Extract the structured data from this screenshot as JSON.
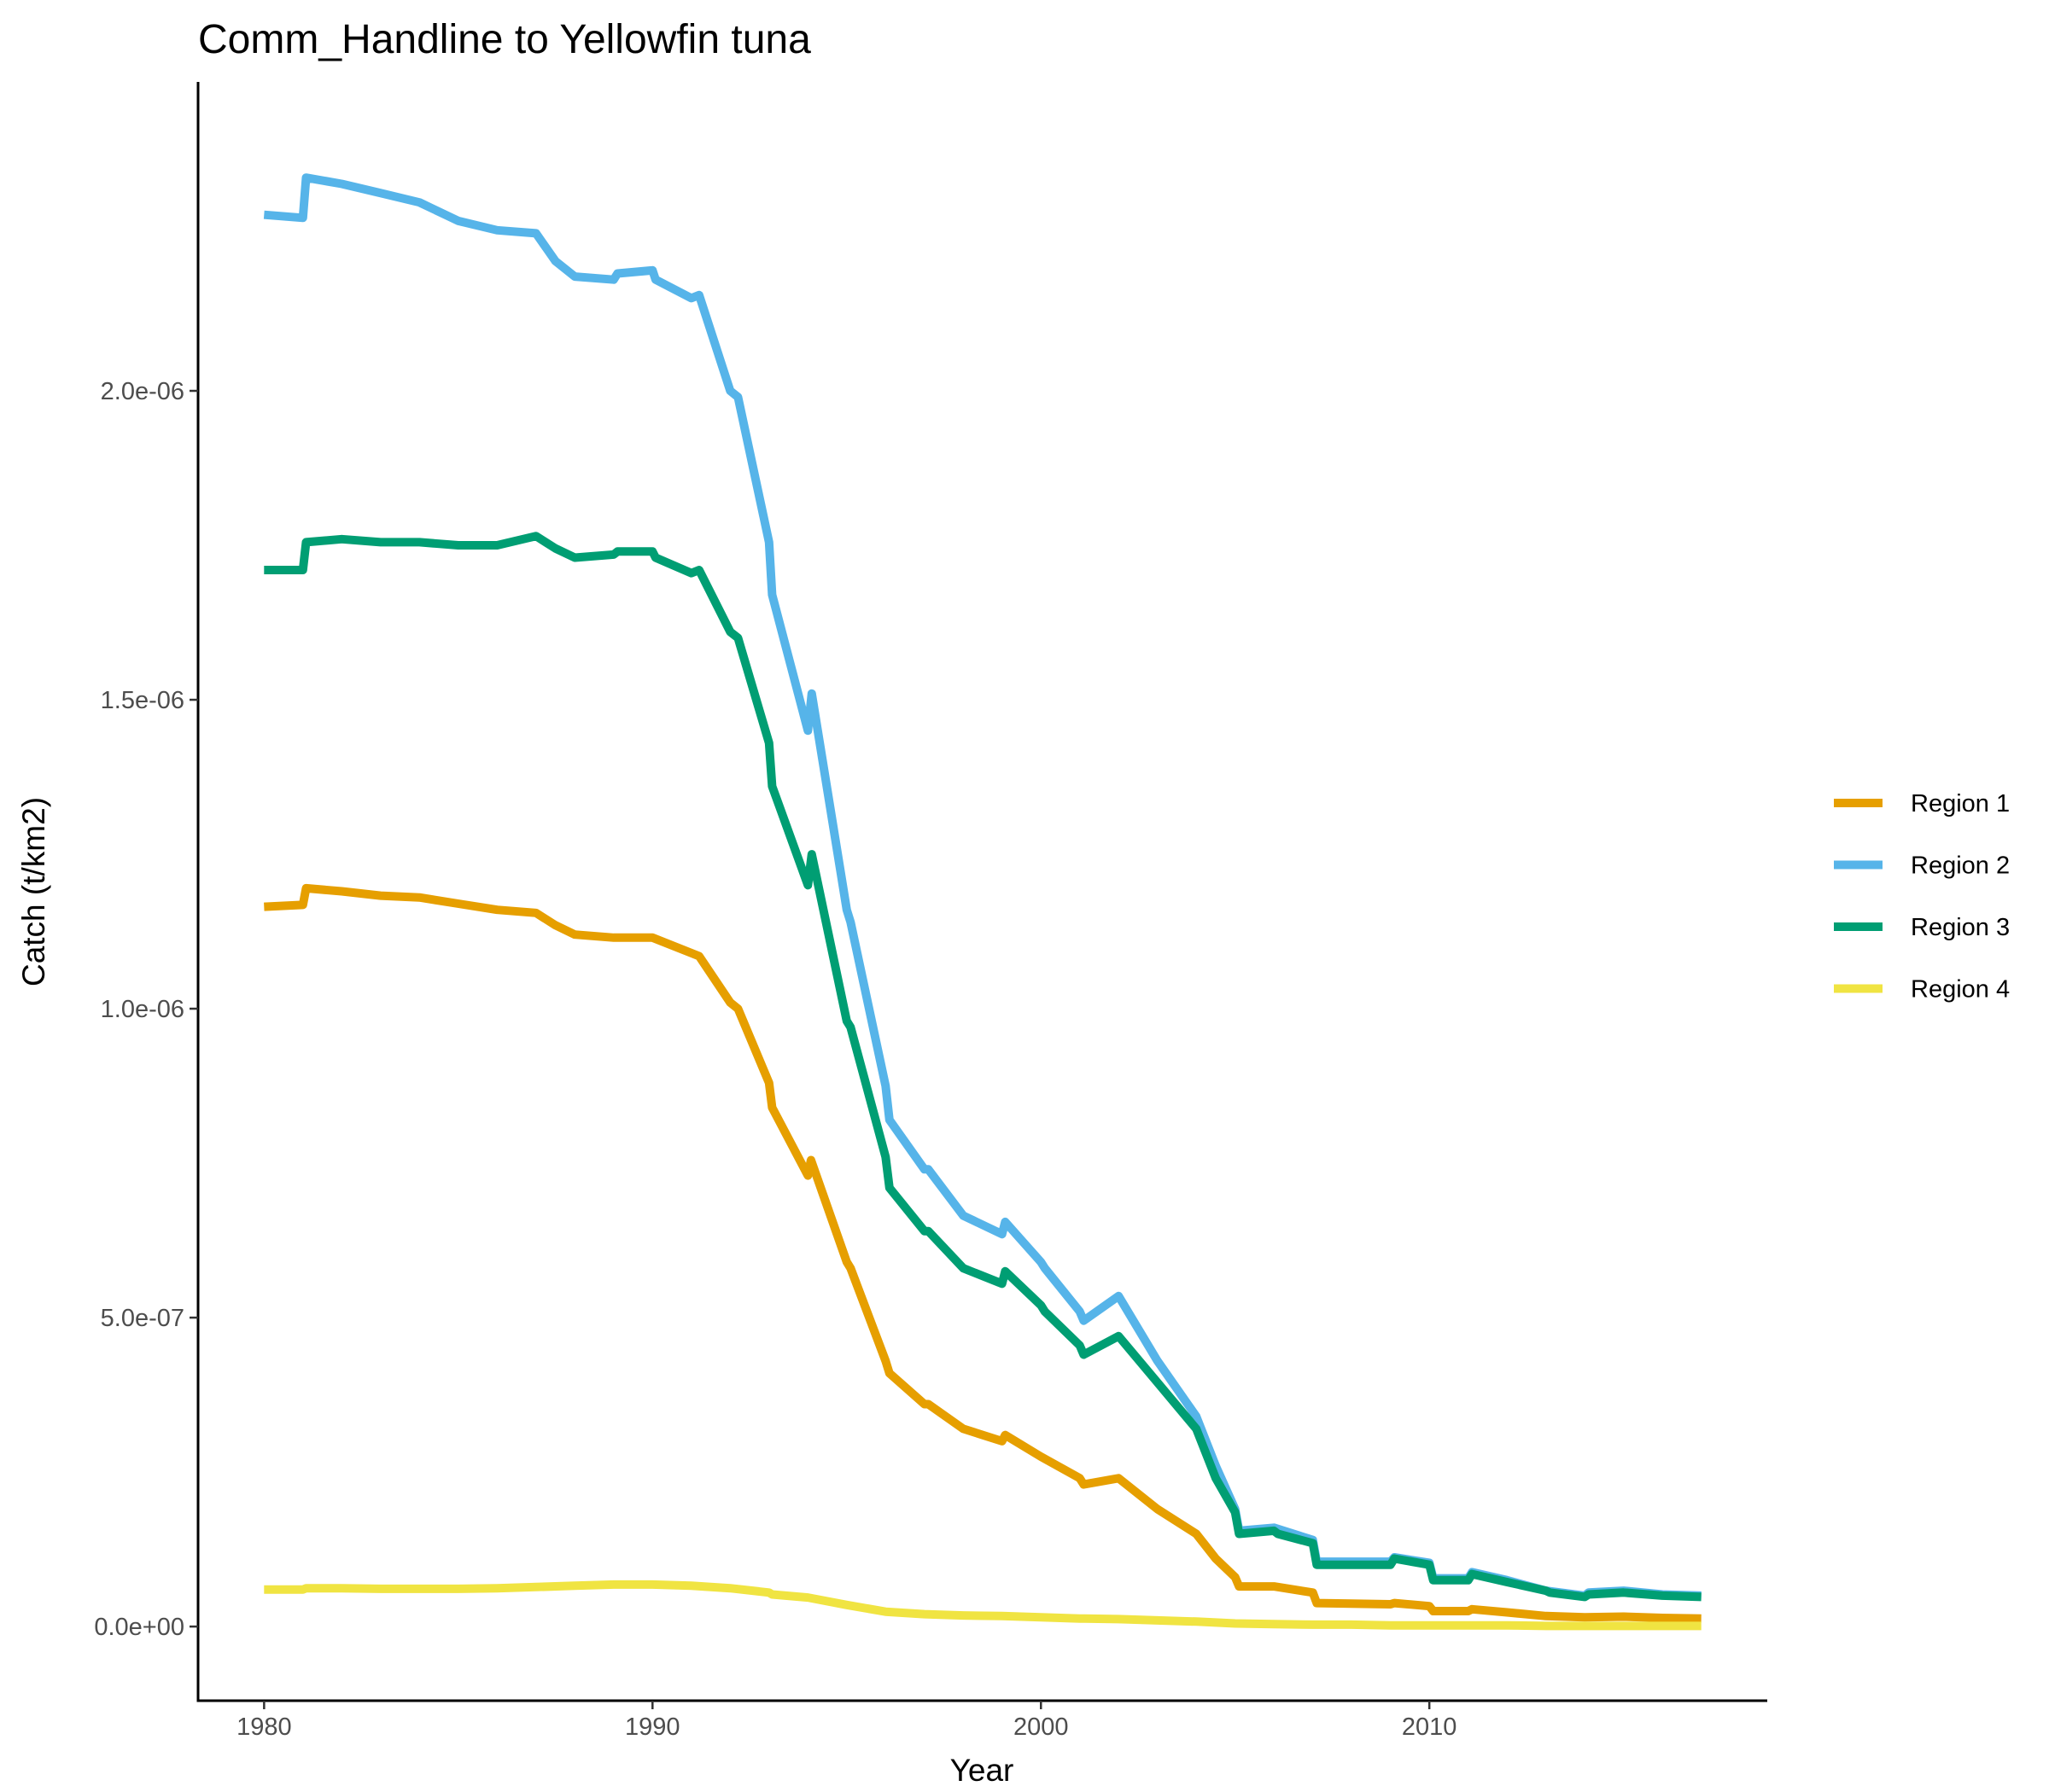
{
  "chart_data": {
    "type": "line",
    "title": "Comm_Handline to Yellowfin tuna",
    "xlabel": "Year",
    "ylabel": "Catch (t/km2)",
    "xlim": [
      1978.3,
      2018.7
    ],
    "ylim": [
      -1.2e-07,
      2.5e-06
    ],
    "x_ticks": [
      1980,
      1990,
      2000,
      2010
    ],
    "x_tick_labels": [
      "1980",
      "1990",
      "2000",
      "2010"
    ],
    "y_ticks": [
      0,
      5e-07,
      1e-06,
      1.5e-06,
      2e-06
    ],
    "y_tick_labels": [
      "0.0e+00",
      "5.0e-07",
      "1.0e-06",
      "1.5e-06",
      "2.0e-06"
    ],
    "grid": false,
    "legend_position": "right",
    "series": [
      {
        "name": "Region 1",
        "color": "#E69F00",
        "points": [
          [
            1980,
            1.165e-06
          ],
          [
            1981,
            1.168e-06
          ],
          [
            1981.08,
            1.195e-06
          ],
          [
            1982,
            1.19e-06
          ],
          [
            1983,
            1.183e-06
          ],
          [
            1984,
            1.18e-06
          ],
          [
            1985,
            1.17e-06
          ],
          [
            1986,
            1.16e-06
          ],
          [
            1987,
            1.155e-06
          ],
          [
            1987.5,
            1.135e-06
          ],
          [
            1988,
            1.12e-06
          ],
          [
            1989,
            1.115e-06
          ],
          [
            1990,
            1.115e-06
          ],
          [
            1991,
            1.09e-06
          ],
          [
            1991.2,
            1.085e-06
          ],
          [
            1992,
            1.01e-06
          ],
          [
            1992.2,
            1e-06
          ],
          [
            1993,
            8.8e-07
          ],
          [
            1993.08,
            8.4e-07
          ],
          [
            1994,
            7.3e-07
          ],
          [
            1994.08,
            7.55e-07
          ],
          [
            1995,
            5.9e-07
          ],
          [
            1995.1,
            5.8e-07
          ],
          [
            1996,
            4.3e-07
          ],
          [
            1996.1,
            4.1e-07
          ],
          [
            1997,
            3.6e-07
          ],
          [
            1997.1,
            3.6e-07
          ],
          [
            1998,
            3.2e-07
          ],
          [
            1999,
            3e-07
          ],
          [
            1999.08,
            3.1e-07
          ],
          [
            2000,
            2.75e-07
          ],
          [
            2001,
            2.4e-07
          ],
          [
            2001.1,
            2.3e-07
          ],
          [
            2002,
            2.4e-07
          ],
          [
            2003,
            1.9e-07
          ],
          [
            2004,
            1.5e-07
          ],
          [
            2004.5,
            1.1e-07
          ],
          [
            2005,
            8e-08
          ],
          [
            2005.1,
            6.5e-08
          ],
          [
            2006,
            6.5e-08
          ],
          [
            2007,
            5.5e-08
          ],
          [
            2007.1,
            3.8e-08
          ],
          [
            2008,
            3.7e-08
          ],
          [
            2009,
            3.6e-08
          ],
          [
            2009.1,
            3.8e-08
          ],
          [
            2010,
            3.3e-08
          ],
          [
            2010.1,
            2.5e-08
          ],
          [
            2011,
            2.5e-08
          ],
          [
            2011.1,
            2.8e-08
          ],
          [
            2012,
            2.3e-08
          ],
          [
            2013,
            1.7e-08
          ],
          [
            2014,
            1.5e-08
          ],
          [
            2015,
            1.6e-08
          ],
          [
            2016,
            1.4e-08
          ],
          [
            2017,
            1.3e-08
          ]
        ]
      },
      {
        "name": "Region 2",
        "color": "#56B4E9",
        "points": [
          [
            1980,
            2.285e-06
          ],
          [
            1981,
            2.28e-06
          ],
          [
            1981.08,
            2.345e-06
          ],
          [
            1982,
            2.335e-06
          ],
          [
            1983,
            2.32e-06
          ],
          [
            1984,
            2.305e-06
          ],
          [
            1985,
            2.275e-06
          ],
          [
            1986,
            2.26e-06
          ],
          [
            1987,
            2.255e-06
          ],
          [
            1987.5,
            2.21e-06
          ],
          [
            1988,
            2.185e-06
          ],
          [
            1989,
            2.18e-06
          ],
          [
            1989.1,
            2.19e-06
          ],
          [
            1990,
            2.195e-06
          ],
          [
            1990.08,
            2.18e-06
          ],
          [
            1991,
            2.15e-06
          ],
          [
            1991.2,
            2.155e-06
          ],
          [
            1992,
            2e-06
          ],
          [
            1992.2,
            1.99e-06
          ],
          [
            1993,
            1.755e-06
          ],
          [
            1993.08,
            1.67e-06
          ],
          [
            1994,
            1.45e-06
          ],
          [
            1994.1,
            1.51e-06
          ],
          [
            1995,
            1.16e-06
          ],
          [
            1995.1,
            1.14e-06
          ],
          [
            1996,
            8.75e-07
          ],
          [
            1996.1,
            8.2e-07
          ],
          [
            1997,
            7.4e-07
          ],
          [
            1997.1,
            7.4e-07
          ],
          [
            1998,
            6.65e-07
          ],
          [
            1999,
            6.35e-07
          ],
          [
            1999.08,
            6.55e-07
          ],
          [
            2000,
            5.9e-07
          ],
          [
            2000.1,
            5.8e-07
          ],
          [
            2001,
            5.1e-07
          ],
          [
            2001.1,
            4.95e-07
          ],
          [
            2002,
            5.35e-07
          ],
          [
            2003,
            4.3e-07
          ],
          [
            2004,
            3.4e-07
          ],
          [
            2004.5,
            2.6e-07
          ],
          [
            2005,
            1.9e-07
          ],
          [
            2005.1,
            1.55e-07
          ],
          [
            2006,
            1.6e-07
          ],
          [
            2007,
            1.4e-07
          ],
          [
            2007.1,
            1.05e-07
          ],
          [
            2008,
            1.05e-07
          ],
          [
            2009,
            1.05e-07
          ],
          [
            2009.1,
            1.12e-07
          ],
          [
            2010,
            1.03e-07
          ],
          [
            2010.1,
            7.8e-08
          ],
          [
            2011,
            7.8e-08
          ],
          [
            2011.1,
            8.8e-08
          ],
          [
            2012,
            7.5e-08
          ],
          [
            2013,
            5.8e-08
          ],
          [
            2014,
            5e-08
          ],
          [
            2014.1,
            5.5e-08
          ],
          [
            2015,
            5.8e-08
          ],
          [
            2016,
            5.2e-08
          ],
          [
            2017,
            5e-08
          ]
        ]
      },
      {
        "name": "Region 3",
        "color": "#009E73",
        "points": [
          [
            1980,
            1.71e-06
          ],
          [
            1981,
            1.71e-06
          ],
          [
            1981.08,
            1.755e-06
          ],
          [
            1982,
            1.76e-06
          ],
          [
            1983,
            1.755e-06
          ],
          [
            1984,
            1.755e-06
          ],
          [
            1985,
            1.75e-06
          ],
          [
            1986,
            1.75e-06
          ],
          [
            1987,
            1.765e-06
          ],
          [
            1987.5,
            1.745e-06
          ],
          [
            1988,
            1.73e-06
          ],
          [
            1989,
            1.735e-06
          ],
          [
            1989.1,
            1.74e-06
          ],
          [
            1990,
            1.74e-06
          ],
          [
            1990.08,
            1.73e-06
          ],
          [
            1991,
            1.705e-06
          ],
          [
            1991.2,
            1.71e-06
          ],
          [
            1992,
            1.61e-06
          ],
          [
            1992.2,
            1.6e-06
          ],
          [
            1993,
            1.43e-06
          ],
          [
            1993.08,
            1.36e-06
          ],
          [
            1994,
            1.2e-06
          ],
          [
            1994.1,
            1.25e-06
          ],
          [
            1995,
            9.8e-07
          ],
          [
            1995.1,
            9.7e-07
          ],
          [
            1996,
            7.6e-07
          ],
          [
            1996.1,
            7.1e-07
          ],
          [
            1997,
            6.4e-07
          ],
          [
            1997.1,
            6.4e-07
          ],
          [
            1998,
            5.8e-07
          ],
          [
            1999,
            5.55e-07
          ],
          [
            1999.08,
            5.75e-07
          ],
          [
            2000,
            5.2e-07
          ],
          [
            2000.1,
            5.1e-07
          ],
          [
            2001,
            4.55e-07
          ],
          [
            2001.1,
            4.4e-07
          ],
          [
            2002,
            4.7e-07
          ],
          [
            2003,
            3.95e-07
          ],
          [
            2004,
            3.2e-07
          ],
          [
            2004.5,
            2.4e-07
          ],
          [
            2005,
            1.85e-07
          ],
          [
            2005.1,
            1.5e-07
          ],
          [
            2006,
            1.55e-07
          ],
          [
            2006.1,
            1.5e-07
          ],
          [
            2007,
            1.35e-07
          ],
          [
            2007.1,
            1e-07
          ],
          [
            2008,
            1e-07
          ],
          [
            2008.1,
            1e-07
          ],
          [
            2009,
            1e-07
          ],
          [
            2009.1,
            1.1e-07
          ],
          [
            2010,
            1e-07
          ],
          [
            2010.1,
            7.5e-08
          ],
          [
            2011,
            7.5e-08
          ],
          [
            2011.1,
            8.5e-08
          ],
          [
            2012,
            7.2e-08
          ],
          [
            2013,
            5.8e-08
          ],
          [
            2013.1,
            5.5e-08
          ],
          [
            2014,
            4.8e-08
          ],
          [
            2014.1,
            5.2e-08
          ],
          [
            2015,
            5.5e-08
          ],
          [
            2016,
            5e-08
          ],
          [
            2017,
            4.8e-08
          ]
        ]
      },
      {
        "name": "Region 4",
        "color": "#F0E442",
        "points": [
          [
            1980,
            6e-08
          ],
          [
            1981,
            6e-08
          ],
          [
            1981.08,
            6.2e-08
          ],
          [
            1982,
            6.2e-08
          ],
          [
            1983,
            6.1e-08
          ],
          [
            1984,
            6.1e-08
          ],
          [
            1985,
            6.1e-08
          ],
          [
            1986,
            6.2e-08
          ],
          [
            1987,
            6.4e-08
          ],
          [
            1988,
            6.6e-08
          ],
          [
            1989,
            6.8e-08
          ],
          [
            1990,
            6.8e-08
          ],
          [
            1991,
            6.6e-08
          ],
          [
            1992,
            6.2e-08
          ],
          [
            1993,
            5.5e-08
          ],
          [
            1993.08,
            5.2e-08
          ],
          [
            1994,
            4.7e-08
          ],
          [
            1995,
            3.5e-08
          ],
          [
            1996,
            2.4e-08
          ],
          [
            1997,
            2e-08
          ],
          [
            1998,
            1.8e-08
          ],
          [
            1999,
            1.7e-08
          ],
          [
            2000,
            1.5e-08
          ],
          [
            2001,
            1.3e-08
          ],
          [
            2002,
            1.2e-08
          ],
          [
            2003,
            1e-08
          ],
          [
            2004,
            8e-09
          ],
          [
            2005,
            5e-09
          ],
          [
            2006,
            4e-09
          ],
          [
            2007,
            3e-09
          ],
          [
            2008,
            3e-09
          ],
          [
            2009,
            2e-09
          ],
          [
            2010,
            2e-09
          ],
          [
            2011,
            2e-09
          ],
          [
            2012,
            2e-09
          ],
          [
            2013,
            1e-09
          ],
          [
            2014,
            1e-09
          ],
          [
            2015,
            1e-09
          ],
          [
            2016,
            1e-09
          ],
          [
            2017,
            1e-09
          ]
        ]
      }
    ]
  }
}
